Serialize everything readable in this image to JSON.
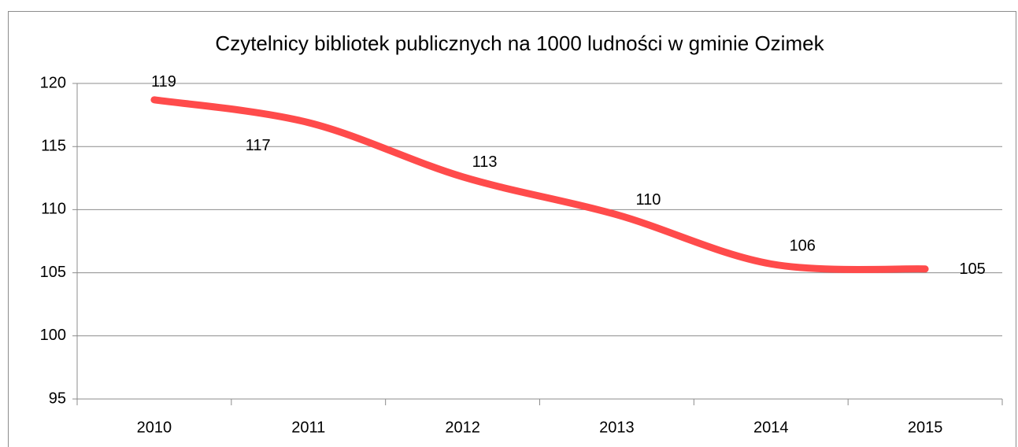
{
  "chart_data": {
    "type": "line",
    "title": "Czytelnicy bibliotek publicznych na 1000 ludności w gminie Ozimek",
    "categories": [
      "2010",
      "2011",
      "2012",
      "2013",
      "2014",
      "2015"
    ],
    "series": [
      {
        "name": "Czytelnicy",
        "color": "#ff4b4b",
        "values": [
          118.7,
          116.9,
          112.6,
          109.6,
          105.7,
          105.3
        ],
        "value_labels": [
          "119",
          "117",
          "113",
          "110",
          "106",
          "105"
        ]
      }
    ],
    "ylim": [
      95,
      120
    ],
    "yticks": [
      95,
      100,
      105,
      110,
      115,
      120
    ],
    "grid": true,
    "smooth": true
  }
}
